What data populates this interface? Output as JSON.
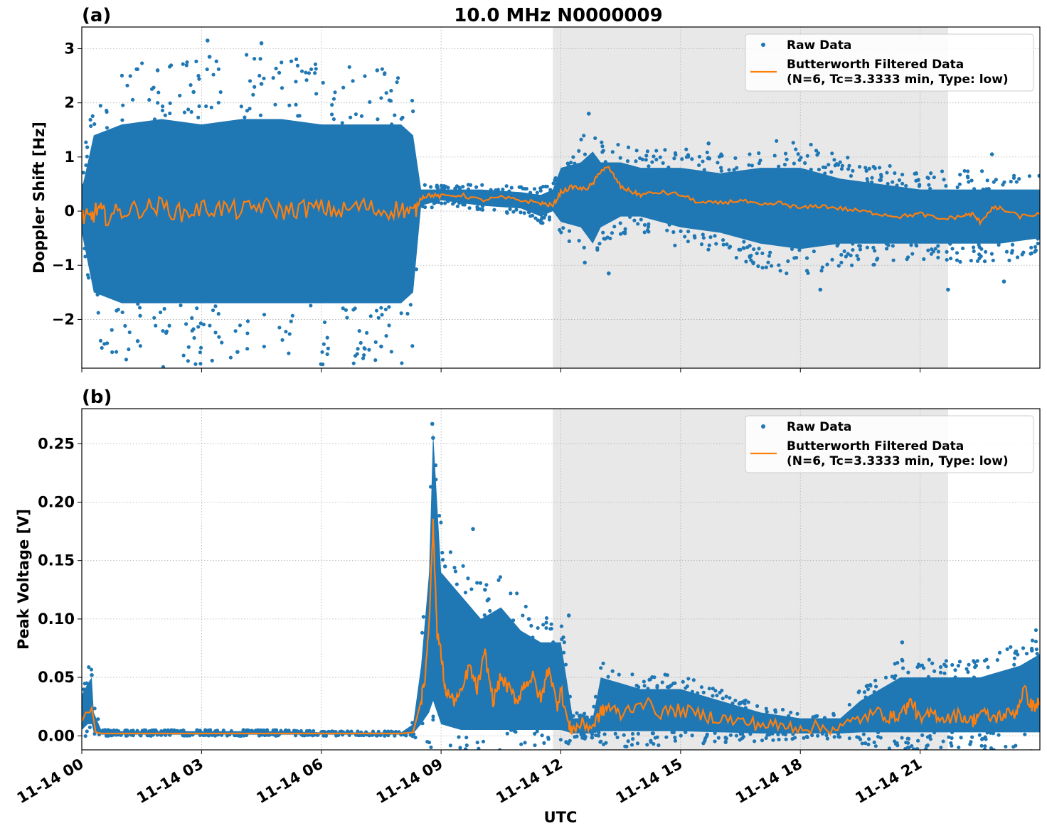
{
  "chart_data": {
    "title": "10.0 MHz N0000009",
    "xlabel": "UTC",
    "x_unit": "hours since 11-14 00:00 UTC",
    "xlim": [
      0,
      24
    ],
    "xticks": [
      {
        "value": 0,
        "label": "11-14 00"
      },
      {
        "value": 3,
        "label": "11-14 03"
      },
      {
        "value": 6,
        "label": "11-14 06"
      },
      {
        "value": 9,
        "label": "11-14 09"
      },
      {
        "value": 12,
        "label": "11-14 12"
      },
      {
        "value": 15,
        "label": "11-14 15"
      },
      {
        "value": 18,
        "label": "11-14 18"
      },
      {
        "value": 21,
        "label": "11-14 21"
      }
    ],
    "shaded_span": [
      11.8,
      21.7
    ],
    "grid": true,
    "colors": {
      "raw": "#1f77b4",
      "filtered": "#ff7f0e",
      "shade": "#e8e8e8"
    },
    "legend": {
      "placement": "top-right",
      "raw_label": "Raw Data",
      "filtered_label_line1": "Butterworth Filtered Data",
      "filtered_label_line2": "(N=6, Tc=3.3333 min, Type: low)"
    },
    "panels": [
      {
        "id": "a",
        "panel_label": "(a)",
        "type": "scatter+line",
        "ylabel": "Doppler Shift [Hz]",
        "ylim": [
          -2.9,
          3.4
        ],
        "yticks": [
          {
            "value": -2,
            "label": "−2"
          },
          {
            "value": -1,
            "label": "−1"
          },
          {
            "value": 0,
            "label": "0"
          },
          {
            "value": 1,
            "label": "1"
          },
          {
            "value": 2,
            "label": "2"
          },
          {
            "value": 3,
            "label": "3"
          }
        ],
        "raw_envelope": {
          "x": [
            0,
            0.3,
            1,
            2,
            3,
            4,
            5,
            6,
            7,
            8,
            8.3,
            8.5,
            9,
            10,
            11,
            11.5,
            11.8,
            12,
            12.5,
            12.8,
            13,
            13.5,
            14,
            15,
            16,
            17,
            18,
            19,
            20,
            21,
            22,
            23,
            24
          ],
          "upper": [
            0.4,
            1.4,
            1.6,
            1.7,
            1.6,
            1.7,
            1.7,
            1.6,
            1.6,
            1.6,
            1.4,
            0.4,
            0.4,
            0.4,
            0.35,
            0.3,
            0.4,
            0.8,
            0.9,
            1.1,
            0.9,
            0.9,
            0.8,
            0.8,
            0.7,
            0.8,
            0.8,
            0.6,
            0.5,
            0.4,
            0.4,
            0.4,
            0.4
          ],
          "lower": [
            -0.4,
            -1.5,
            -1.7,
            -1.7,
            -1.7,
            -1.7,
            -1.7,
            -1.7,
            -1.7,
            -1.7,
            -1.5,
            0.1,
            0.2,
            0.1,
            0.05,
            -0.1,
            0.0,
            -0.2,
            -0.3,
            -0.6,
            -0.3,
            -0.1,
            -0.1,
            -0.3,
            -0.4,
            -0.6,
            -0.7,
            -0.6,
            -0.6,
            -0.6,
            -0.6,
            -0.6,
            -0.5
          ]
        },
        "raw_outliers": [
          {
            "x": 3.15,
            "y": 3.15
          },
          {
            "x": 3.2,
            "y": 2.85
          },
          {
            "x": 4.5,
            "y": 3.1
          },
          {
            "x": 1.9,
            "y": 2.6
          },
          {
            "x": 7.4,
            "y": 2.6
          },
          {
            "x": 2.8,
            "y": 2.2
          },
          {
            "x": 4.5,
            "y": 2.35
          },
          {
            "x": 3.9,
            "y": -2.6
          },
          {
            "x": 7.5,
            "y": -2.5
          },
          {
            "x": 1.4,
            "y": -2.4
          },
          {
            "x": 12.7,
            "y": 1.8
          },
          {
            "x": 13.2,
            "y": -1.15
          },
          {
            "x": 12.6,
            "y": -0.95
          },
          {
            "x": 18.5,
            "y": -1.45
          },
          {
            "x": 21.7,
            "y": -1.45
          },
          {
            "x": 23.1,
            "y": -1.3
          },
          {
            "x": 22.8,
            "y": 1.05
          },
          {
            "x": 15.7,
            "y": 1.25
          }
        ],
        "filtered": {
          "x": [
            0,
            0.2,
            0.4,
            0.6,
            1,
            1.5,
            2,
            2.5,
            3,
            3.5,
            4,
            4.5,
            5,
            5.5,
            6,
            6.5,
            7,
            7.5,
            8,
            8.3,
            8.5,
            8.7,
            9,
            9.5,
            10,
            10.5,
            11,
            11.5,
            11.8,
            12,
            12.3,
            12.6,
            12.8,
            13,
            13.2,
            13.5,
            13.8,
            14,
            14.5,
            15,
            15.5,
            16,
            16.5,
            17,
            17.5,
            18,
            18.5,
            19,
            19.5,
            20,
            20.5,
            21,
            21.5,
            22,
            22.3,
            22.5,
            22.8,
            23,
            23.5,
            24
          ],
          "y": [
            -0.1,
            -0.15,
            0.05,
            -0.1,
            0.0,
            0.05,
            0.1,
            -0.05,
            0.05,
            0.05,
            0.0,
            0.1,
            0.0,
            0.05,
            0.05,
            0.0,
            0.1,
            0.0,
            0.05,
            -0.05,
            0.25,
            0.3,
            0.27,
            0.3,
            0.2,
            0.25,
            0.2,
            0.15,
            0.1,
            0.35,
            0.45,
            0.4,
            0.5,
            0.75,
            0.8,
            0.45,
            0.35,
            0.3,
            0.35,
            0.3,
            0.15,
            0.15,
            0.2,
            0.1,
            0.15,
            0.05,
            0.1,
            0.05,
            0.0,
            -0.05,
            -0.1,
            -0.05,
            -0.15,
            -0.1,
            -0.05,
            -0.2,
            0.05,
            0.05,
            -0.1,
            -0.05
          ]
        }
      },
      {
        "id": "b",
        "panel_label": "(b)",
        "type": "scatter+line",
        "ylabel": "Peak Voltage [V]",
        "ylim": [
          -0.012,
          0.28
        ],
        "yticks": [
          {
            "value": 0,
            "label": "0.00"
          },
          {
            "value": 0.05,
            "label": "0.05"
          },
          {
            "value": 0.1,
            "label": "0.10"
          },
          {
            "value": 0.15,
            "label": "0.15"
          },
          {
            "value": 0.2,
            "label": "0.20"
          },
          {
            "value": 0.25,
            "label": "0.25"
          }
        ],
        "raw_envelope": {
          "x": [
            0,
            0.15,
            0.25,
            0.3,
            0.5,
            1,
            2,
            3,
            4,
            5,
            6,
            7,
            8,
            8.3,
            8.5,
            8.7,
            8.8,
            9,
            9.5,
            10,
            10.5,
            11,
            11.5,
            11.8,
            12,
            12.3,
            12.6,
            12.8,
            13,
            13.5,
            14,
            15,
            16,
            17,
            18,
            19,
            19.5,
            20,
            20.5,
            21,
            21.5,
            22,
            22.5,
            23,
            23.5,
            24
          ],
          "upper": [
            0.035,
            0.045,
            0.05,
            0.02,
            0.004,
            0.004,
            0.004,
            0.004,
            0.004,
            0.004,
            0.003,
            0.003,
            0.003,
            0.01,
            0.06,
            0.14,
            0.26,
            0.14,
            0.12,
            0.1,
            0.11,
            0.09,
            0.08,
            0.08,
            0.08,
            0.015,
            0.015,
            0.015,
            0.05,
            0.045,
            0.04,
            0.04,
            0.03,
            0.02,
            0.015,
            0.015,
            0.03,
            0.04,
            0.05,
            0.05,
            0.05,
            0.05,
            0.05,
            0.055,
            0.06,
            0.07
          ],
          "lower": [
            0.005,
            0.01,
            0.01,
            0.003,
            0.001,
            0.001,
            0.001,
            0.001,
            0.001,
            0.001,
            0.001,
            0.001,
            0.001,
            0.002,
            0.01,
            0.02,
            0.03,
            0.01,
            0.005,
            0.005,
            0.005,
            0.005,
            0.005,
            0.005,
            0.005,
            0.002,
            0.002,
            0.002,
            0.004,
            0.004,
            0.004,
            0.004,
            0.003,
            0.002,
            0.002,
            0.002,
            0.003,
            0.003,
            0.003,
            0.003,
            0.003,
            0.003,
            0.003,
            0.003,
            0.003,
            0.003
          ]
        },
        "raw_outliers": [
          {
            "x": 8.78,
            "y": 0.267
          },
          {
            "x": 8.8,
            "y": 0.255
          },
          {
            "x": 9.8,
            "y": 0.177
          },
          {
            "x": 10.1,
            "y": 0.125
          },
          {
            "x": 12.2,
            "y": 0.103
          },
          {
            "x": 20.55,
            "y": 0.08
          },
          {
            "x": 21.0,
            "y": 0.06
          },
          {
            "x": 22.4,
            "y": 0.06
          },
          {
            "x": 23.8,
            "y": 0.073
          },
          {
            "x": 0.25,
            "y": 0.052
          },
          {
            "x": 9.1,
            "y": 0.145
          },
          {
            "x": 11.2,
            "y": 0.1
          }
        ],
        "filtered": {
          "x": [
            0,
            0.1,
            0.2,
            0.25,
            0.35,
            0.5,
            1,
            2,
            3,
            4,
            5,
            6,
            7,
            8,
            8.3,
            8.5,
            8.6,
            8.7,
            8.8,
            8.9,
            9.0,
            9.1,
            9.3,
            9.5,
            9.7,
            9.9,
            10.1,
            10.3,
            10.5,
            10.7,
            10.9,
            11.1,
            11.3,
            11.5,
            11.7,
            11.9,
            12.0,
            12.2,
            12.3,
            12.5,
            12.8,
            13.0,
            13.2,
            13.5,
            14,
            14.5,
            15,
            15.5,
            16,
            16.5,
            17,
            17.5,
            18,
            18.5,
            19,
            19.5,
            20,
            20.3,
            20.6,
            20.8,
            21,
            21.3,
            21.6,
            22,
            22.3,
            22.5,
            22.8,
            23.1,
            23.4,
            23.6,
            23.8,
            24
          ],
          "y": [
            0.012,
            0.02,
            0.02,
            0.024,
            0.003,
            0.002,
            0.002,
            0.002,
            0.002,
            0.002,
            0.002,
            0.002,
            0.002,
            0.002,
            0.003,
            0.03,
            0.05,
            0.1,
            0.18,
            0.09,
            0.07,
            0.04,
            0.03,
            0.035,
            0.06,
            0.04,
            0.07,
            0.03,
            0.05,
            0.04,
            0.03,
            0.045,
            0.05,
            0.03,
            0.06,
            0.025,
            0.04,
            0.008,
            0.005,
            0.01,
            0.008,
            0.02,
            0.025,
            0.018,
            0.03,
            0.02,
            0.022,
            0.018,
            0.015,
            0.012,
            0.01,
            0.008,
            0.008,
            0.007,
            0.007,
            0.015,
            0.02,
            0.015,
            0.022,
            0.03,
            0.012,
            0.02,
            0.015,
            0.018,
            0.012,
            0.02,
            0.015,
            0.018,
            0.02,
            0.04,
            0.025,
            0.028
          ]
        }
      }
    ]
  }
}
